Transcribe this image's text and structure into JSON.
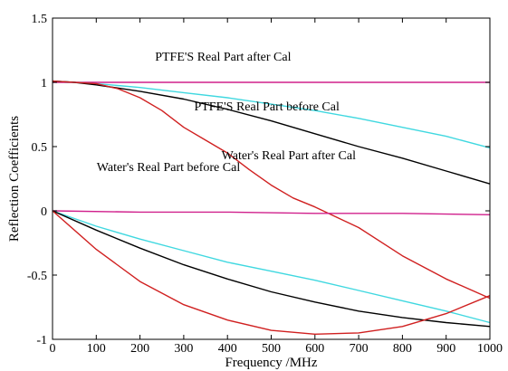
{
  "chart_data": {
    "type": "line",
    "title": "",
    "xlabel": "Frequency /MHz",
    "ylabel": "Reflection Coefficients",
    "xlim": [
      0,
      1000
    ],
    "ylim": [
      -1,
      1.5
    ],
    "xticks": [
      0,
      100,
      200,
      300,
      400,
      500,
      600,
      700,
      800,
      900,
      1000
    ],
    "yticks": [
      -1,
      -0.5,
      0,
      0.5,
      1,
      1.5
    ],
    "xtick_labels": [
      "0",
      "100",
      "200",
      "300",
      "400",
      "500",
      "600",
      "700",
      "800",
      "900",
      "1000"
    ],
    "ytick_labels": [
      "-1",
      "-0.5",
      "0",
      "0.5",
      "1",
      "1.5"
    ],
    "grid": false,
    "legend": "none",
    "annotations": [
      {
        "text": "PTFE'S Real Part after Cal",
        "x": 390,
        "y": 1.17
      },
      {
        "text": "PTFE'S Real Part before Cal",
        "x": 490,
        "y": 0.78
      },
      {
        "text": "Water's Real Part after Cal",
        "x": 540,
        "y": 0.4
      },
      {
        "text": "Water's Real Part before Cal",
        "x": 265,
        "y": 0.31
      }
    ],
    "series": [
      {
        "color": "#d0208c",
        "x": [
          0,
          100,
          200,
          300,
          400,
          500,
          600,
          700,
          800,
          900,
          1000
        ],
        "y": [
          1.0,
          1.0,
          1.0,
          1.0,
          1.0,
          1.0,
          1.0,
          1.0,
          1.0,
          1.0,
          1.0
        ]
      },
      {
        "color": "#40d8e0",
        "x": [
          0,
          50,
          100,
          200,
          300,
          400,
          500,
          600,
          700,
          800,
          900,
          1000
        ],
        "y": [
          1.01,
          1.0,
          0.99,
          0.96,
          0.92,
          0.88,
          0.83,
          0.78,
          0.72,
          0.65,
          0.58,
          0.49
        ]
      },
      {
        "color": "#000000",
        "x": [
          0,
          50,
          100,
          200,
          300,
          400,
          500,
          600,
          700,
          800,
          900,
          1000
        ],
        "y": [
          1.01,
          1.0,
          0.98,
          0.93,
          0.87,
          0.79,
          0.7,
          0.6,
          0.5,
          0.41,
          0.31,
          0.21
        ]
      },
      {
        "color": "#d02020",
        "x": [
          0,
          100,
          150,
          200,
          250,
          300,
          350,
          400,
          450,
          500,
          550,
          600,
          650,
          700,
          800,
          900,
          1000
        ],
        "y": [
          1.01,
          0.99,
          0.95,
          0.88,
          0.78,
          0.65,
          0.55,
          0.45,
          0.32,
          0.2,
          0.1,
          0.03,
          -0.05,
          -0.13,
          -0.35,
          -0.53,
          -0.68
        ]
      },
      {
        "color": "#d0208c",
        "x": [
          0,
          200,
          400,
          600,
          800,
          1000
        ],
        "y": [
          0.0,
          -0.01,
          -0.01,
          -0.02,
          -0.02,
          -0.03
        ]
      },
      {
        "color": "#40d8e0",
        "x": [
          0,
          100,
          200,
          300,
          400,
          500,
          600,
          700,
          800,
          900,
          1000
        ],
        "y": [
          0.0,
          -0.12,
          -0.22,
          -0.31,
          -0.4,
          -0.47,
          -0.54,
          -0.62,
          -0.7,
          -0.78,
          -0.87
        ]
      },
      {
        "color": "#000000",
        "x": [
          0,
          100,
          200,
          300,
          400,
          500,
          600,
          700,
          800,
          900,
          1000
        ],
        "y": [
          0.0,
          -0.15,
          -0.29,
          -0.42,
          -0.53,
          -0.63,
          -0.71,
          -0.78,
          -0.83,
          -0.87,
          -0.9
        ]
      },
      {
        "color": "#d02020",
        "x": [
          0,
          100,
          200,
          300,
          400,
          500,
          600,
          700,
          800,
          900,
          1000
        ],
        "y": [
          0.0,
          -0.3,
          -0.55,
          -0.73,
          -0.85,
          -0.93,
          -0.96,
          -0.95,
          -0.9,
          -0.8,
          -0.66
        ]
      }
    ]
  }
}
